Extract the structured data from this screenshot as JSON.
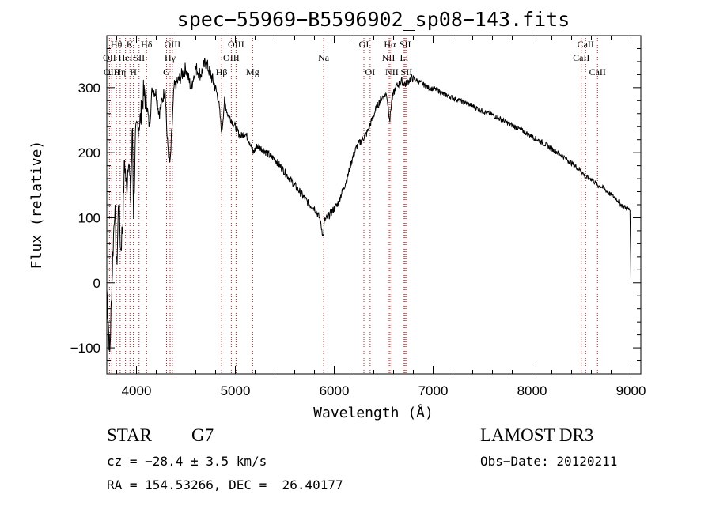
{
  "chart_data": {
    "type": "line",
    "title": "spec−55969−B5596902_sp08−143.fits",
    "xlabel": "Wavelength (Å)",
    "ylabel": "Flux (relative)",
    "xlim": [
      3700,
      9100
    ],
    "ylim": [
      -140,
      380
    ],
    "xticks": [
      4000,
      5000,
      6000,
      7000,
      8000,
      9000
    ],
    "yticks": [
      -100,
      0,
      100,
      200,
      300
    ],
    "ytick_labels": [
      "−100",
      "0",
      "100",
      "200",
      "300"
    ],
    "grid": false,
    "series": [
      {
        "values": [
          [
            3700,
            -10
          ],
          [
            3730,
            -110
          ],
          [
            3760,
            40
          ],
          [
            3780,
            120
          ],
          [
            3800,
            20
          ],
          [
            3820,
            130
          ],
          [
            3840,
            50
          ],
          [
            3860,
            90
          ],
          [
            3880,
            190
          ],
          [
            3900,
            140
          ],
          [
            3920,
            200
          ],
          [
            3940,
            130
          ],
          [
            3960,
            240
          ],
          [
            3970,
            110
          ],
          [
            3990,
            220
          ],
          [
            4010,
            240
          ],
          [
            4040,
            250
          ],
          [
            4070,
            290
          ],
          [
            4100,
            280
          ],
          [
            4130,
            240
          ],
          [
            4160,
            300
          ],
          [
            4200,
            290
          ],
          [
            4230,
            260
          ],
          [
            4260,
            280
          ],
          [
            4290,
            300
          ],
          [
            4310,
            220
          ],
          [
            4340,
            180
          ],
          [
            4380,
            300
          ],
          [
            4420,
            310
          ],
          [
            4460,
            320
          ],
          [
            4500,
            330
          ],
          [
            4550,
            300
          ],
          [
            4600,
            330
          ],
          [
            4650,
            320
          ],
          [
            4700,
            340
          ],
          [
            4750,
            320
          ],
          [
            4800,
            300
          ],
          [
            4830,
            280
          ],
          [
            4862,
            230
          ],
          [
            4890,
            280
          ],
          [
            4920,
            260
          ],
          [
            4960,
            250
          ],
          [
            5000,
            240
          ],
          [
            5050,
            225
          ],
          [
            5100,
            230
          ],
          [
            5150,
            215
          ],
          [
            5180,
            200
          ],
          [
            5220,
            210
          ],
          [
            5280,
            205
          ],
          [
            5350,
            195
          ],
          [
            5400,
            190
          ],
          [
            5450,
            180
          ],
          [
            5500,
            170
          ],
          [
            5550,
            160
          ],
          [
            5600,
            150
          ],
          [
            5650,
            140
          ],
          [
            5700,
            130
          ],
          [
            5750,
            120
          ],
          [
            5800,
            115
          ],
          [
            5850,
            100
          ],
          [
            5890,
            70
          ],
          [
            5900,
            95
          ],
          [
            5930,
            100
          ],
          [
            5980,
            110
          ],
          [
            6030,
            120
          ],
          [
            6080,
            140
          ],
          [
            6130,
            160
          ],
          [
            6180,
            190
          ],
          [
            6230,
            210
          ],
          [
            6280,
            220
          ],
          [
            6330,
            230
          ],
          [
            6380,
            250
          ],
          [
            6430,
            270
          ],
          [
            6480,
            285
          ],
          [
            6530,
            290
          ],
          [
            6563,
            250
          ],
          [
            6580,
            280
          ],
          [
            6620,
            300
          ],
          [
            6680,
            310
          ],
          [
            6720,
            305
          ],
          [
            6780,
            315
          ],
          [
            6850,
            310
          ],
          [
            6900,
            305
          ],
          [
            6950,
            300
          ],
          [
            7000,
            298
          ],
          [
            7050,
            296
          ],
          [
            7100,
            290
          ],
          [
            7150,
            288
          ],
          [
            7200,
            284
          ],
          [
            7300,
            278
          ],
          [
            7400,
            272
          ],
          [
            7500,
            264
          ],
          [
            7600,
            258
          ],
          [
            7700,
            250
          ],
          [
            7800,
            242
          ],
          [
            7900,
            234
          ],
          [
            8000,
            225
          ],
          [
            8100,
            216
          ],
          [
            8200,
            206
          ],
          [
            8300,
            196
          ],
          [
            8400,
            184
          ],
          [
            8498,
            172
          ],
          [
            8542,
            162
          ],
          [
            8600,
            160
          ],
          [
            8662,
            150
          ],
          [
            8700,
            148
          ],
          [
            8800,
            135
          ],
          [
            8850,
            130
          ],
          [
            8900,
            120
          ],
          [
            8950,
            115
          ],
          [
            8990,
            112
          ],
          [
            9000,
            5
          ]
        ]
      }
    ],
    "line_markers": [
      {
        "wl": 3727,
        "label": "OII",
        "row": 1
      },
      {
        "wl": 3750,
        "label": "OIII",
        "row": 2
      },
      {
        "wl": 3797,
        "label": "Hθ",
        "row": 0
      },
      {
        "wl": 3835,
        "label": "Hη",
        "row": 2
      },
      {
        "wl": 3889,
        "label": "HeI",
        "row": 1
      },
      {
        "wl": 3934,
        "label": "K",
        "row": 0
      },
      {
        "wl": 3969,
        "label": "H",
        "row": 2
      },
      {
        "wl": 4026,
        "label": "SII",
        "row": 1
      },
      {
        "wl": 4102,
        "label": "Hδ",
        "row": 0
      },
      {
        "wl": 4304,
        "label": "G",
        "row": 2
      },
      {
        "wl": 4340,
        "label": "Hγ",
        "row": 1
      },
      {
        "wl": 4363,
        "label": "OIII",
        "row": 0
      },
      {
        "wl": 4861,
        "label": "Hβ",
        "row": 2
      },
      {
        "wl": 4959,
        "label": "OIII",
        "row": 1
      },
      {
        "wl": 5007,
        "label": "OIII",
        "row": 0
      },
      {
        "wl": 5175,
        "label": "Mg",
        "row": 2
      },
      {
        "wl": 5893,
        "label": "Na",
        "row": 1
      },
      {
        "wl": 6300,
        "label": "OI",
        "row": 0
      },
      {
        "wl": 6363,
        "label": "OI",
        "row": 2
      },
      {
        "wl": 6548,
        "label": "NII",
        "row": 1
      },
      {
        "wl": 6563,
        "label": "Hα",
        "row": 0
      },
      {
        "wl": 6583,
        "label": "NII",
        "row": 2
      },
      {
        "wl": 6707,
        "label": "Li",
        "row": 1
      },
      {
        "wl": 6717,
        "label": "SII",
        "row": 0
      },
      {
        "wl": 6731,
        "label": "SII",
        "row": 2
      },
      {
        "wl": 8498,
        "label": "CaII",
        "row": 1
      },
      {
        "wl": 8542,
        "label": "CaII",
        "row": 0
      },
      {
        "wl": 8662,
        "label": "CaII",
        "row": 2
      }
    ],
    "marker_color": "#b22222",
    "line_color": "#000000"
  },
  "info": {
    "object_class": "STAR",
    "subclass": "G7",
    "survey": "LAMOST DR3",
    "cz": "cz = −28.4 ± 3.5 km/s",
    "obs_date": "Obs−Date: 20120211",
    "coords": "RA = 154.53266, DEC =  26.40177"
  }
}
